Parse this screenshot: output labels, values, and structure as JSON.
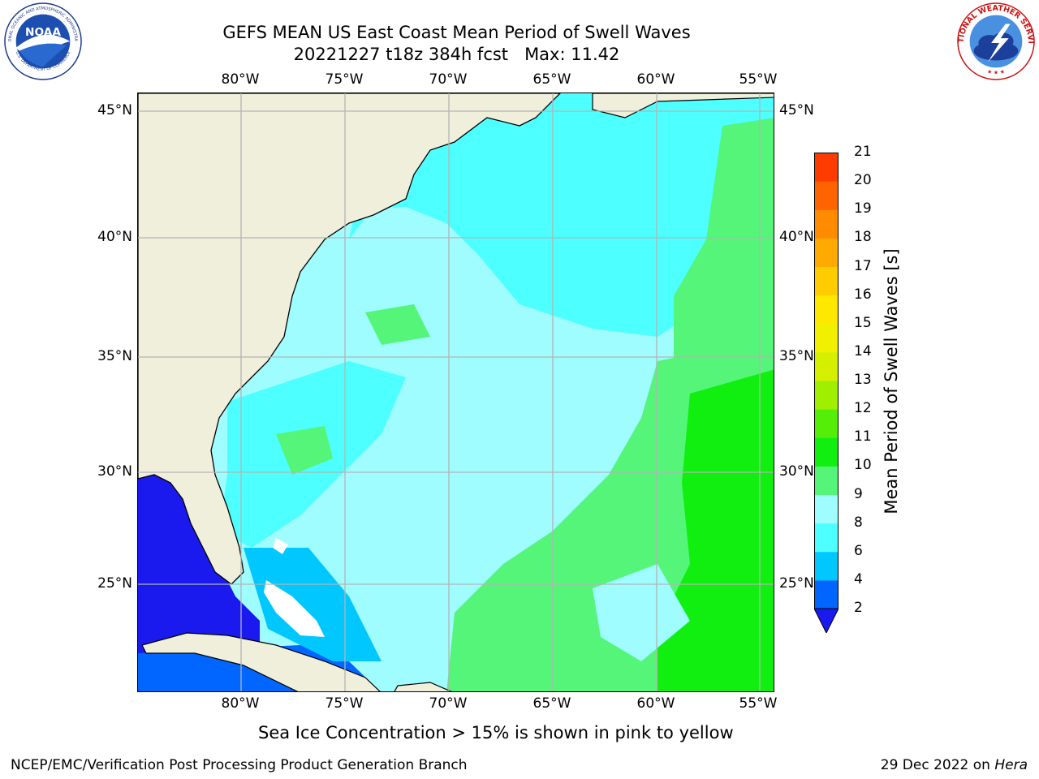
{
  "header": {
    "title_line1": "GEFS MEAN US East Coast Mean Period of Swell Waves",
    "title_line2": "20221227 t18z 384h fcst   Max: 11.42"
  },
  "map": {
    "lon_labels": [
      "80°W",
      "75°W",
      "70°W",
      "65°W",
      "60°W",
      "55°W"
    ],
    "lat_labels": [
      "45°N",
      "40°N",
      "35°N",
      "30°N",
      "25°N"
    ],
    "colors": {
      "land": "#efefdc",
      "coast": "#000000",
      "grid": "#b4b4b4"
    }
  },
  "colorbar": {
    "label": "Mean Period of Swell Waves [s]",
    "ticks": [
      "2",
      "4",
      "6",
      "8",
      "9",
      "10",
      "11",
      "12",
      "13",
      "14",
      "15",
      "16",
      "17",
      "18",
      "19",
      "20",
      "21"
    ],
    "colors": [
      "#0066ff",
      "#00c8ff",
      "#4dffff",
      "#9ffcff",
      "#55f57a",
      "#10ef10",
      "#55ee08",
      "#a0ee00",
      "#d4f000",
      "#f0f000",
      "#ffe800",
      "#ffcc00",
      "#ffaa00",
      "#ff8c00",
      "#ff6400",
      "#ff3c00",
      "#ff0000"
    ],
    "under_color": "#1a1aee"
  },
  "note": "Sea Ice Concentration > 15% is shown in pink to yellow",
  "footer": {
    "left": "NCEP/EMC/Verification Post Processing Product Generation Branch",
    "right_prefix": "29 Dec 2022 on ",
    "right_host": "Hera"
  },
  "logos": {
    "noaa_text": "NOAA",
    "noaa_ring_top": "NATIONAL OCEANIC AND ATMOSPHERIC ADMINISTRATION",
    "noaa_ring_bottom": "U.S. DEPARTMENT OF COMMERCE",
    "nws_ring_top": "NATIONAL WEATHER SERVICE",
    "nws_ring_bottom": "★ ★ ★"
  }
}
